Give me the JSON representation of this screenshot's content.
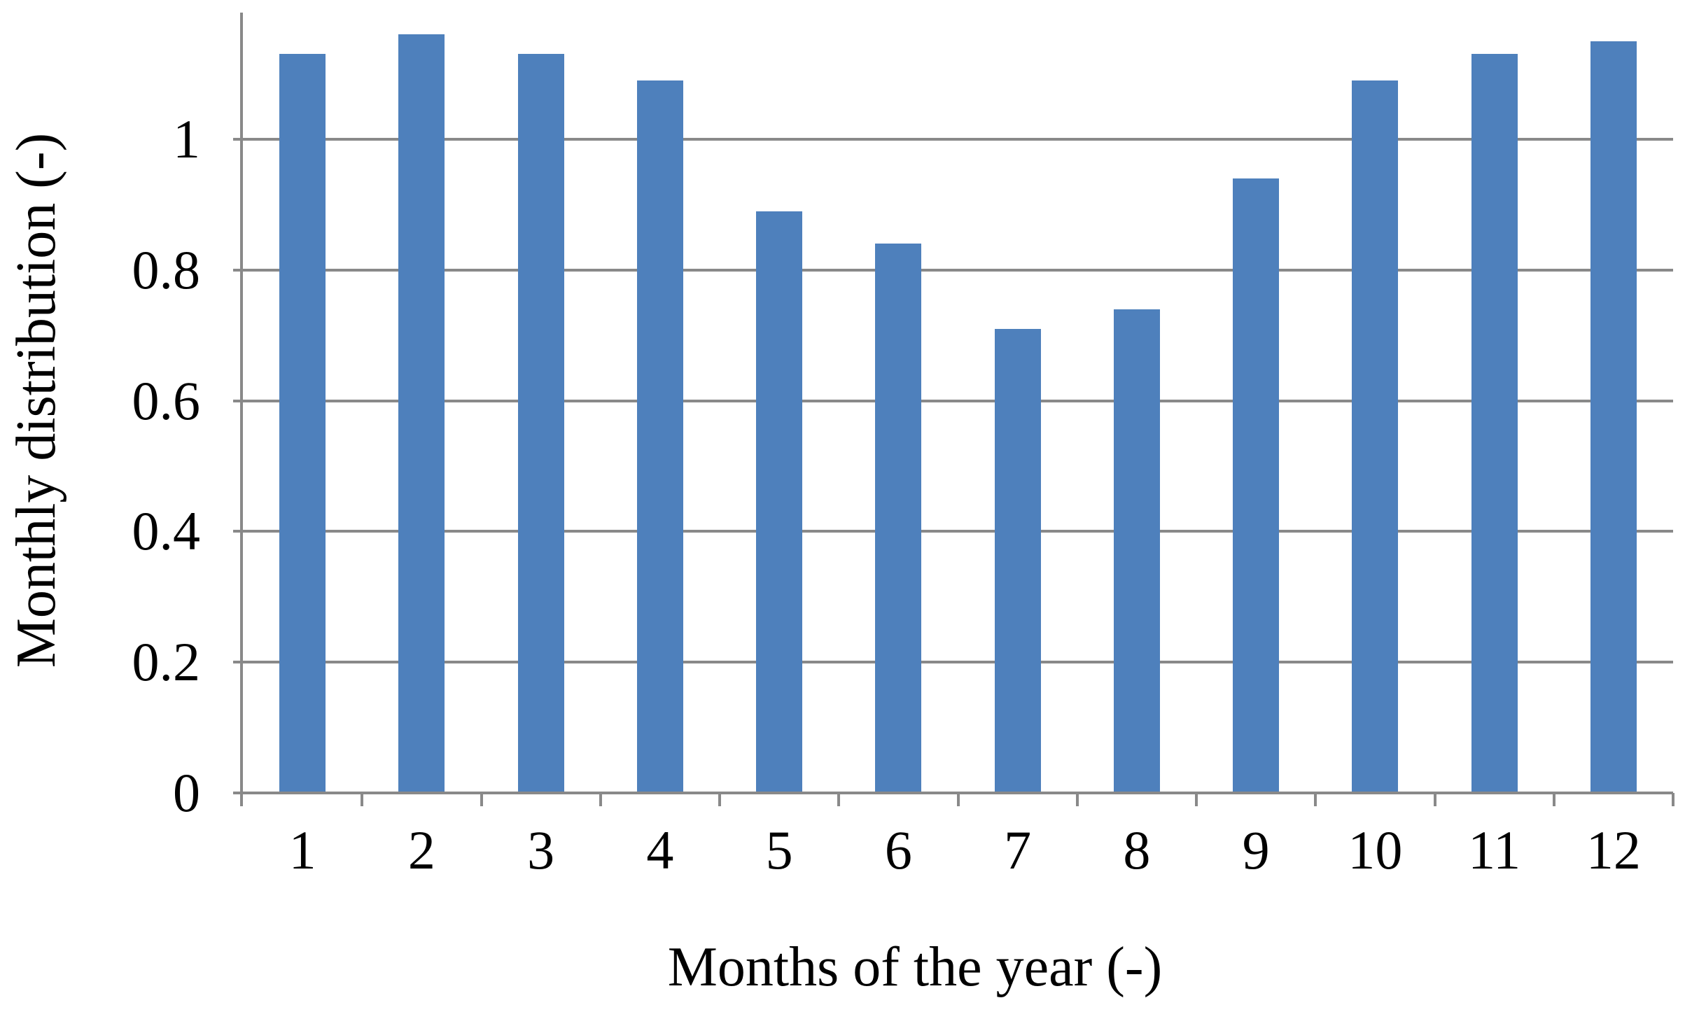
{
  "figure": {
    "background_color": "#ffffff",
    "text_color": "#000000"
  },
  "chart_data": {
    "type": "bar",
    "title": "",
    "xlabel": "Months of the year (-)",
    "ylabel": "Monthly distribution (-)",
    "categories": [
      "1",
      "2",
      "3",
      "4",
      "5",
      "6",
      "7",
      "8",
      "9",
      "10",
      "11",
      "12"
    ],
    "values": [
      1.13,
      1.16,
      1.13,
      1.09,
      0.89,
      0.84,
      0.71,
      0.74,
      0.94,
      1.09,
      1.13,
      1.15
    ],
    "series_name": "Monthly distribution",
    "ylim": [
      0,
      1.2
    ],
    "yticks": [
      0,
      0.2,
      0.4,
      0.6,
      0.8,
      1
    ],
    "ytick_labels": [
      "0",
      "0.2",
      "0.4",
      "0.6",
      "0.8",
      "1"
    ],
    "grid": true,
    "gridline_values": [
      0.2,
      0.4,
      0.6,
      0.8,
      1.0
    ],
    "legend": false,
    "bar_color": "#4E80BC",
    "axis_color": "#898989",
    "grid_color": "#898989"
  }
}
